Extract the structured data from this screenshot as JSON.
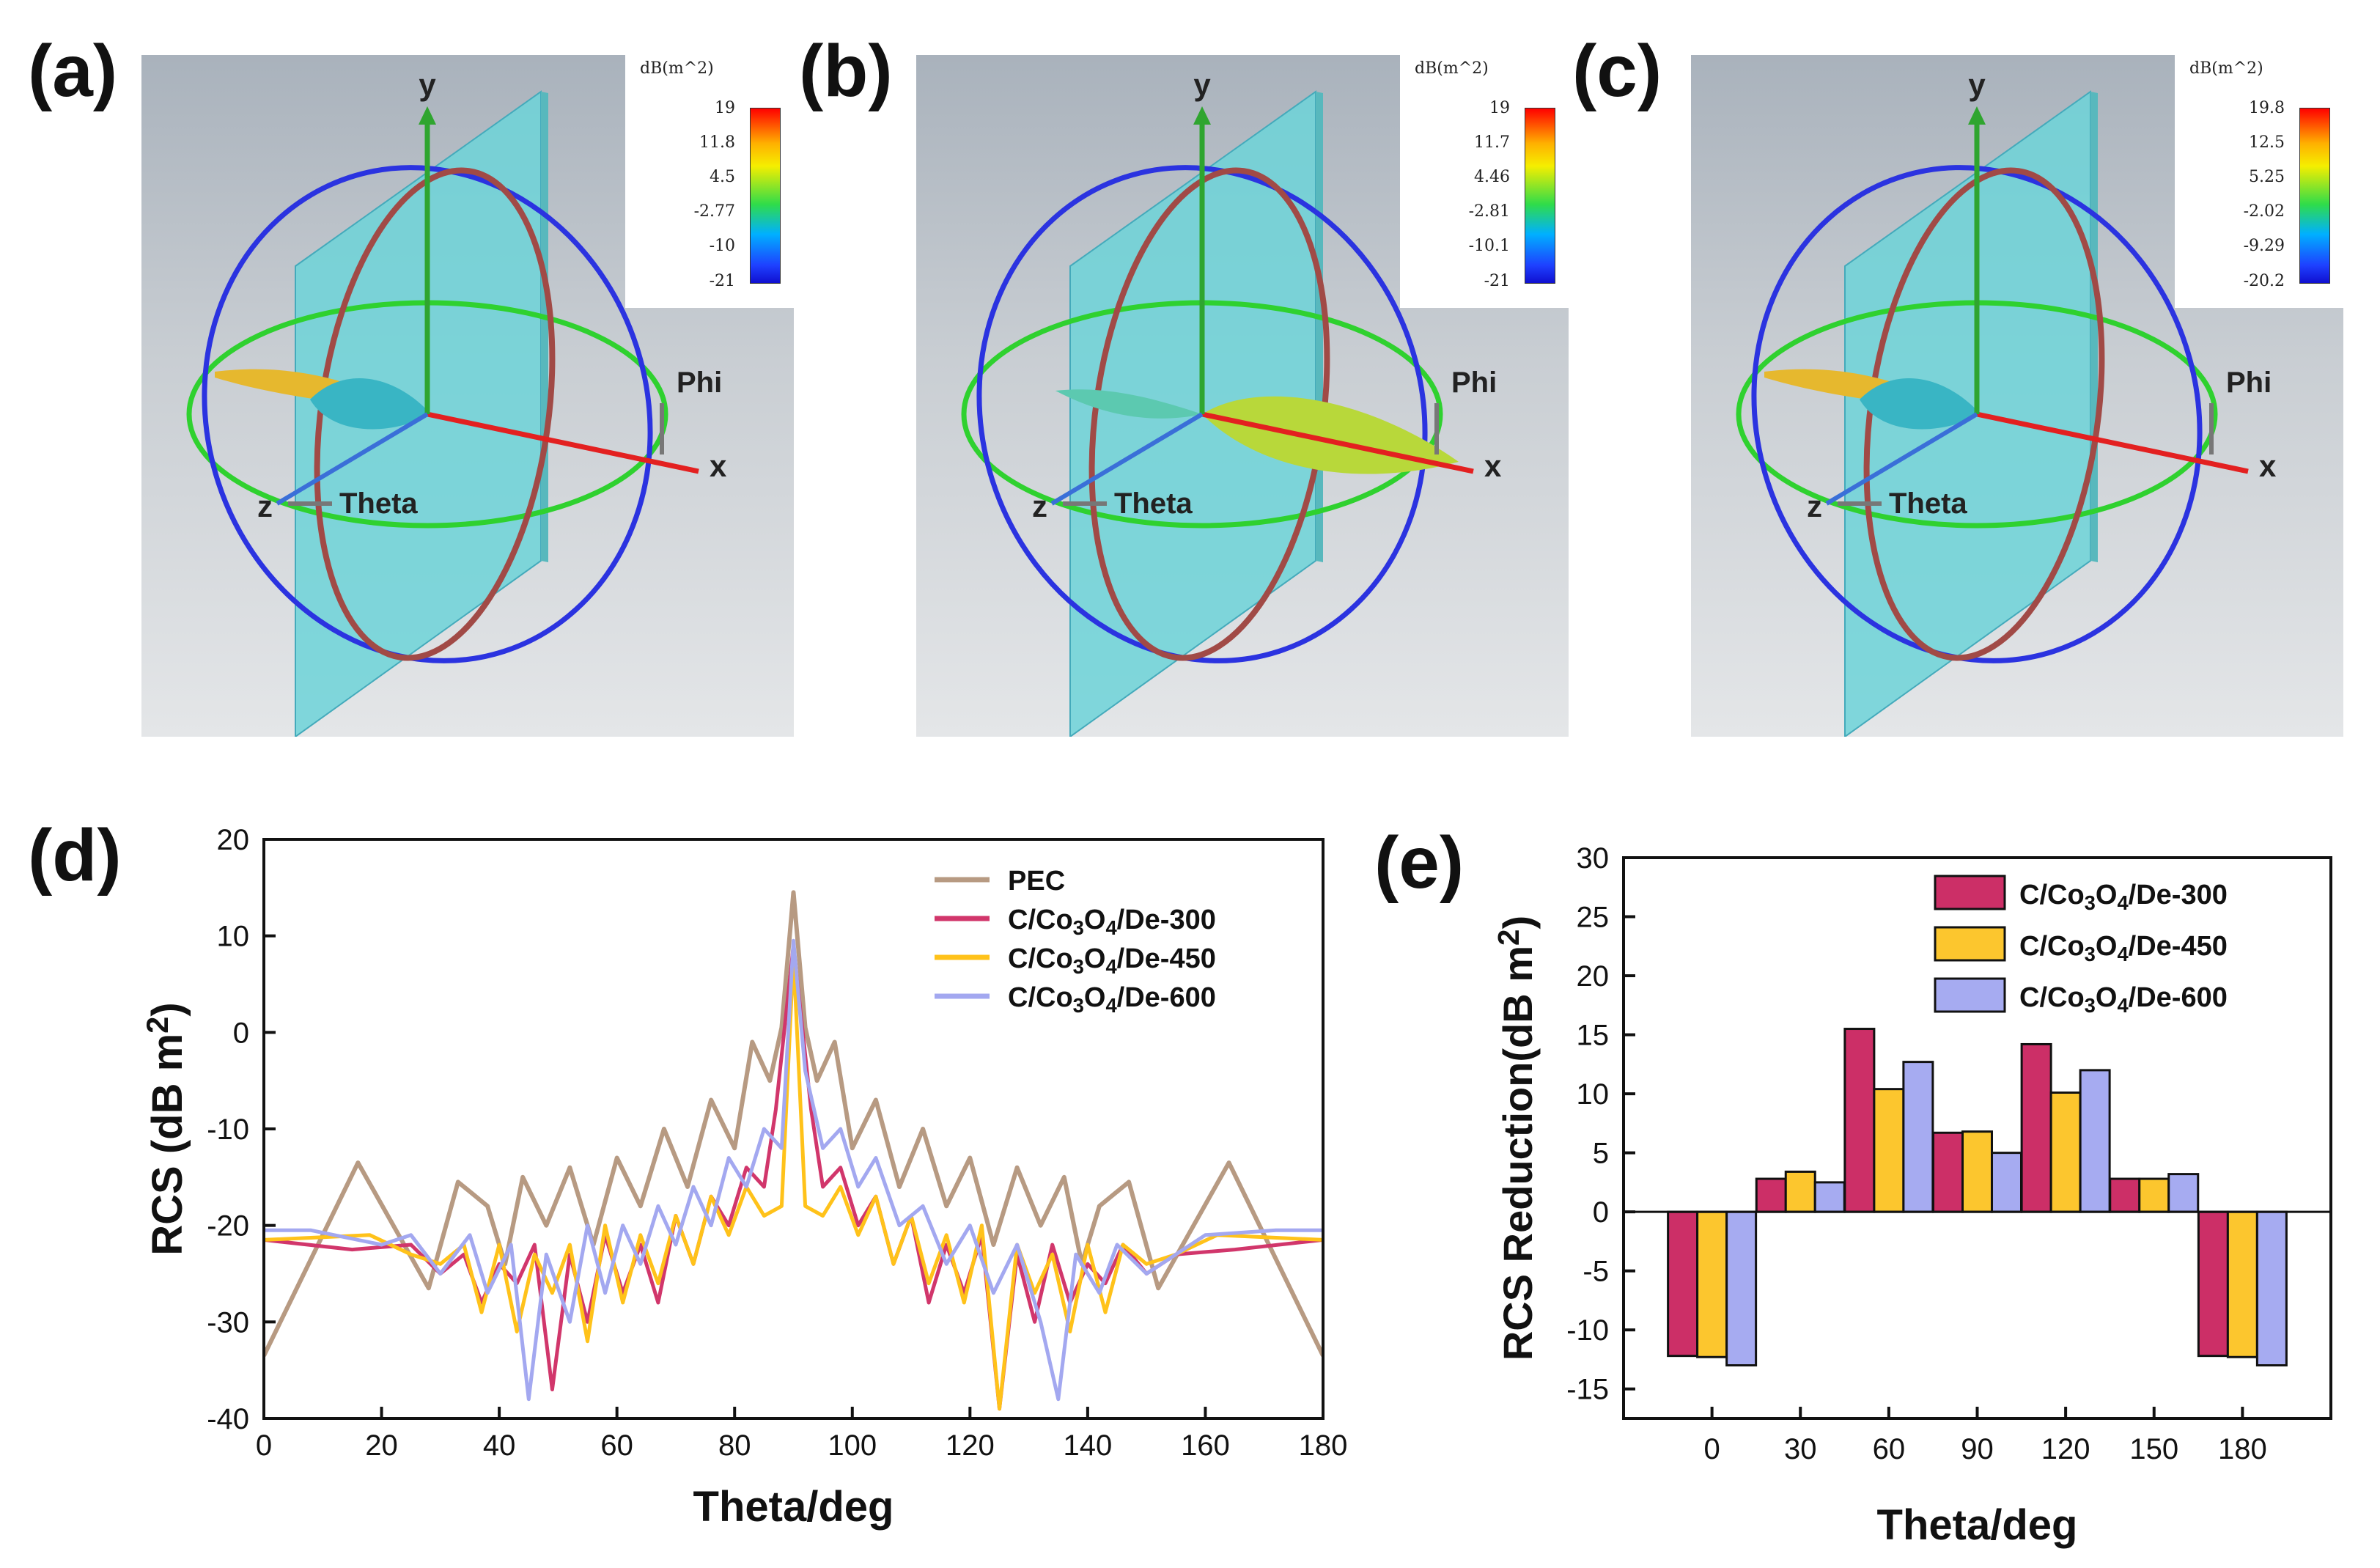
{
  "panels": {
    "a": {
      "label": "(a)",
      "cbar_title": "dB(m^2)",
      "ticks": [
        "19",
        "11.8",
        "4.5",
        "-2.77",
        "-10",
        "-21"
      ]
    },
    "b": {
      "label": "(b)",
      "cbar_title": "dB(m^2)",
      "ticks": [
        "19",
        "11.7",
        "4.46",
        "-2.81",
        "-10.1",
        "-21"
      ]
    },
    "c": {
      "label": "(c)",
      "cbar_title": "dB(m^2)",
      "ticks": [
        "19.8",
        "12.5",
        "5.25",
        "-2.02",
        "-9.29",
        "-20.2"
      ]
    },
    "d": {
      "label": "(d)"
    },
    "e": {
      "label": "(e)"
    }
  },
  "sim_labels": {
    "y": "y",
    "x": "x",
    "z": "z",
    "phi": "Phi",
    "theta": "Theta"
  },
  "chart_data": [
    {
      "type": "line",
      "panel": "d",
      "xlabel": "Theta/deg",
      "ylabel": "RCS (dB m²)",
      "xlim": [
        0,
        180
      ],
      "ylim": [
        -40,
        20
      ],
      "xticks": [
        0,
        20,
        40,
        60,
        80,
        100,
        120,
        140,
        160,
        180
      ],
      "yticks": [
        -40,
        -30,
        -20,
        -10,
        0,
        10,
        20
      ],
      "legend_position": "top-right",
      "series": [
        {
          "name": "PEC",
          "color": "#b79a82",
          "style": "pec",
          "x": [
            0,
            16,
            28,
            33,
            38,
            41,
            44,
            48,
            52,
            56,
            60,
            64,
            68,
            72,
            76,
            80,
            83,
            86,
            88,
            90,
            92,
            94,
            97,
            100,
            104,
            108,
            112,
            116,
            120,
            124,
            128,
            132,
            136,
            139,
            142,
            147,
            152,
            164,
            180
          ],
          "y": [
            -33.5,
            -13.5,
            -26.5,
            -15.5,
            -18,
            -24,
            -15,
            -20,
            -14,
            -22,
            -13,
            -18,
            -10,
            -16,
            -7,
            -12,
            -1,
            -5,
            0.5,
            14.5,
            0.5,
            -5,
            -1,
            -12,
            -7,
            -16,
            -10,
            -18,
            -13,
            -22,
            -14,
            -20,
            -15,
            -24,
            -18,
            -15.5,
            -26.5,
            -13.5,
            -33.5
          ]
        },
        {
          "name": "C/Co₃O₄/De-300",
          "color": "#d1366b",
          "style": "c300",
          "x": [
            0,
            15,
            25,
            30,
            34,
            37,
            40,
            43,
            46,
            49,
            52,
            55,
            58,
            61,
            64,
            67,
            70,
            73,
            76,
            79,
            82,
            85,
            87,
            90,
            93,
            95,
            98,
            101,
            104,
            107,
            110,
            113,
            116,
            119,
            122,
            125,
            128,
            131,
            134,
            137,
            140,
            143,
            146,
            150,
            155,
            165,
            180
          ],
          "y": [
            -21.5,
            -22.5,
            -22,
            -25,
            -23,
            -28,
            -24,
            -26,
            -22,
            -37,
            -23,
            -30,
            -21,
            -27,
            -22,
            -28,
            -19,
            -24,
            -17,
            -20,
            -14,
            -16,
            -8,
            9,
            -8,
            -16,
            -14,
            -20,
            -17,
            -24,
            -19,
            -28,
            -22,
            -27,
            -21,
            -39,
            -23,
            -30,
            -22,
            -28,
            -24,
            -26,
            -22,
            -25,
            -23,
            -22.5,
            -21.5
          ]
        },
        {
          "name": "C/Co₃O₄/De-450",
          "color": "#ffc21a",
          "style": "c450",
          "x": [
            0,
            18,
            25,
            30,
            34,
            37,
            40,
            43,
            46,
            49,
            52,
            55,
            58,
            61,
            64,
            67,
            70,
            73,
            76,
            79,
            82,
            85,
            88,
            90,
            92,
            95,
            98,
            101,
            104,
            107,
            110,
            113,
            116,
            119,
            122,
            125,
            128,
            131,
            134,
            137,
            140,
            143,
            146,
            150,
            155,
            162,
            180
          ],
          "y": [
            -21.5,
            -21,
            -23,
            -24,
            -22,
            -29,
            -22,
            -31,
            -23,
            -27,
            -22,
            -32,
            -20,
            -28,
            -21,
            -26,
            -19,
            -24,
            -17,
            -21,
            -16,
            -19,
            -18,
            8,
            -18,
            -19,
            -16,
            -21,
            -17,
            -24,
            -19,
            -26,
            -21,
            -28,
            -20,
            -39,
            -22,
            -27,
            -23,
            -31,
            -22,
            -29,
            -22,
            -24,
            -23,
            -21,
            -21.5
          ]
        },
        {
          "name": "C/Co₃O₄/De-600",
          "color": "#a3a8f0",
          "style": "c600",
          "x": [
            0,
            8,
            20,
            25,
            30,
            35,
            38,
            42,
            45,
            48,
            52,
            55,
            58,
            61,
            64,
            67,
            70,
            73,
            76,
            79,
            82,
            85,
            88,
            90,
            92,
            95,
            98,
            101,
            104,
            108,
            112,
            116,
            120,
            124,
            128,
            132,
            135,
            138,
            142,
            145,
            150,
            155,
            160,
            172,
            180
          ],
          "y": [
            -20.5,
            -20.5,
            -22,
            -21,
            -25,
            -21,
            -27,
            -22,
            -38,
            -23,
            -30,
            -20,
            -27,
            -20,
            -24,
            -18,
            -22,
            -16,
            -20,
            -13,
            -16,
            -10,
            -12,
            9.5,
            -4,
            -12,
            -10,
            -16,
            -13,
            -20,
            -18,
            -24,
            -20,
            -27,
            -22,
            -30,
            -38,
            -23,
            -27,
            -22,
            -25,
            -23,
            -21,
            -20.5,
            -20.5
          ]
        }
      ]
    },
    {
      "type": "bar",
      "panel": "e",
      "xlabel": "Theta/deg",
      "ylabel": "RCS Reduction(dB m²)",
      "categories": [
        "0",
        "30",
        "60",
        "90",
        "120",
        "150",
        "180"
      ],
      "ylim": [
        -17.5,
        30
      ],
      "yticks": [
        -15,
        -10,
        -5,
        0,
        5,
        10,
        15,
        20,
        25,
        30
      ],
      "legend_position": "top-right",
      "series": [
        {
          "name": "C/Co₃O₄/De-300",
          "color": "#cc2f67",
          "values": [
            -12.2,
            2.8,
            15.5,
            6.7,
            14.2,
            2.8,
            -12.2
          ]
        },
        {
          "name": "C/Co₃O₄/De-450",
          "color": "#fcc62e",
          "values": [
            -12.3,
            3.4,
            10.4,
            6.8,
            10.1,
            2.8,
            -12.3
          ]
        },
        {
          "name": "C/Co₃O₄/De-600",
          "color": "#a6abf1",
          "values": [
            -13.0,
            2.5,
            12.7,
            5.0,
            12.0,
            3.2,
            -13.0
          ]
        }
      ]
    }
  ]
}
